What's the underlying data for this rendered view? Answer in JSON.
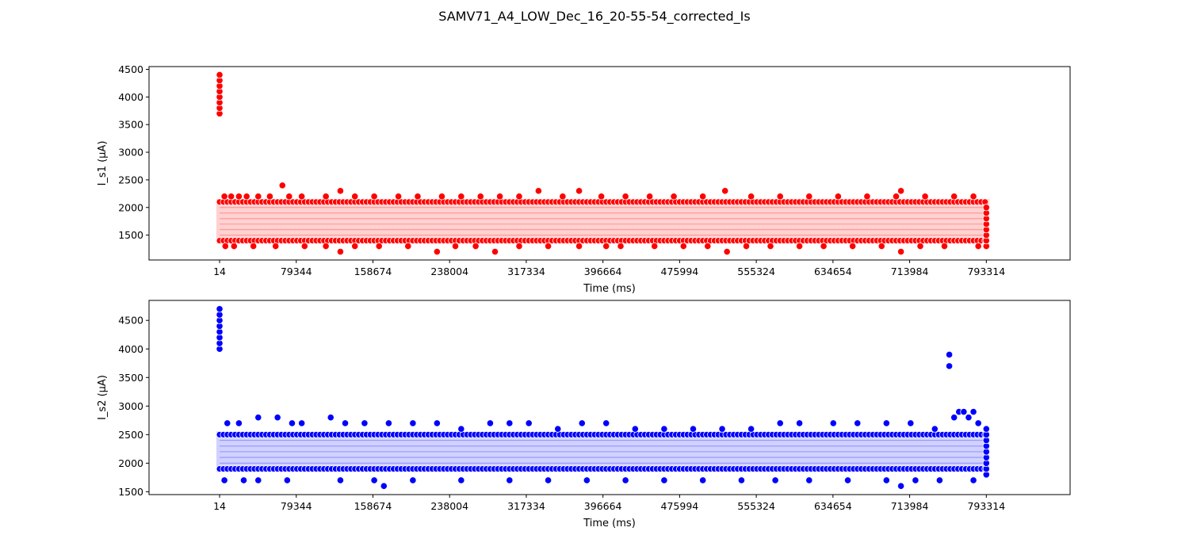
{
  "figure": {
    "title": "SAMV71_A4_LOW_Dec_16_20-55-54_corrected_Is"
  },
  "chart_data": [
    {
      "type": "scatter",
      "title": "",
      "xlabel": "Time (ms)",
      "ylabel": "I_s1 (µA)",
      "xlim": [
        -73000,
        880000
      ],
      "ylim": [
        1050,
        4550
      ],
      "x_ticks": [
        14,
        79344,
        158674,
        238004,
        317334,
        396664,
        475994,
        555324,
        634654,
        713984,
        793314
      ],
      "y_ticks": [
        1500,
        2000,
        2500,
        3000,
        3500,
        4000,
        4500
      ],
      "grid": false,
      "color": "#ff0000",
      "band": {
        "x": [
          14,
          793314
        ],
        "y_low": 1400,
        "y_high": 2100
      },
      "band_levels": [
        1400,
        1500,
        1600,
        1700,
        1800,
        1900,
        2000,
        2100
      ],
      "points": [
        [
          14,
          3700
        ],
        [
          14,
          3800
        ],
        [
          14,
          3900
        ],
        [
          14,
          4000
        ],
        [
          14,
          4100
        ],
        [
          14,
          4200
        ],
        [
          14,
          4300
        ],
        [
          14,
          4400
        ],
        [
          5000,
          2200
        ],
        [
          12000,
          2200
        ],
        [
          20000,
          2200
        ],
        [
          28000,
          2200
        ],
        [
          40000,
          2200
        ],
        [
          52000,
          2200
        ],
        [
          65000,
          2400
        ],
        [
          72000,
          2200
        ],
        [
          85000,
          2200
        ],
        [
          110000,
          2200
        ],
        [
          125000,
          2300
        ],
        [
          140000,
          2200
        ],
        [
          160000,
          2200
        ],
        [
          185000,
          2200
        ],
        [
          205000,
          2200
        ],
        [
          230000,
          2200
        ],
        [
          250000,
          2200
        ],
        [
          270000,
          2200
        ],
        [
          290000,
          2200
        ],
        [
          310000,
          2200
        ],
        [
          330000,
          2300
        ],
        [
          355000,
          2200
        ],
        [
          372000,
          2300
        ],
        [
          395000,
          2200
        ],
        [
          420000,
          2200
        ],
        [
          445000,
          2200
        ],
        [
          470000,
          2200
        ],
        [
          500000,
          2200
        ],
        [
          523000,
          2300
        ],
        [
          550000,
          2200
        ],
        [
          580000,
          2200
        ],
        [
          610000,
          2200
        ],
        [
          640000,
          2200
        ],
        [
          670000,
          2200
        ],
        [
          700000,
          2200
        ],
        [
          705000,
          2300
        ],
        [
          730000,
          2200
        ],
        [
          760000,
          2200
        ],
        [
          780000,
          2200
        ],
        [
          6000,
          1300
        ],
        [
          15000,
          1300
        ],
        [
          35000,
          1300
        ],
        [
          58000,
          1300
        ],
        [
          88000,
          1300
        ],
        [
          110000,
          1300
        ],
        [
          125000,
          1200
        ],
        [
          140000,
          1300
        ],
        [
          165000,
          1300
        ],
        [
          195000,
          1300
        ],
        [
          225000,
          1200
        ],
        [
          244000,
          1300
        ],
        [
          265000,
          1300
        ],
        [
          285000,
          1200
        ],
        [
          310000,
          1300
        ],
        [
          340000,
          1300
        ],
        [
          372000,
          1300
        ],
        [
          400000,
          1300
        ],
        [
          415000,
          1300
        ],
        [
          450000,
          1300
        ],
        [
          480000,
          1300
        ],
        [
          505000,
          1300
        ],
        [
          525000,
          1200
        ],
        [
          545000,
          1300
        ],
        [
          570000,
          1300
        ],
        [
          600000,
          1300
        ],
        [
          625000,
          1300
        ],
        [
          655000,
          1300
        ],
        [
          685000,
          1300
        ],
        [
          705000,
          1200
        ],
        [
          725000,
          1300
        ],
        [
          750000,
          1300
        ],
        [
          785000,
          1300
        ],
        [
          793314,
          1300
        ],
        [
          793314,
          1400
        ],
        [
          793314,
          1500
        ],
        [
          793314,
          1600
        ],
        [
          793314,
          1700
        ],
        [
          793314,
          1800
        ],
        [
          793314,
          1900
        ],
        [
          793314,
          2000
        ]
      ]
    },
    {
      "type": "scatter",
      "title": "",
      "xlabel": "Time (ms)",
      "ylabel": "I_s2 (µA)",
      "xlim": [
        -73000,
        880000
      ],
      "ylim": [
        1450,
        4850
      ],
      "x_ticks": [
        14,
        79344,
        158674,
        238004,
        317334,
        396664,
        475994,
        555324,
        634654,
        713984,
        793314
      ],
      "y_ticks": [
        1500,
        2000,
        2500,
        3000,
        3500,
        4000,
        4500
      ],
      "grid": false,
      "color": "#0000ff",
      "band": {
        "x": [
          14,
          793314
        ],
        "y_low": 1900,
        "y_high": 2500
      },
      "band_levels": [
        1900,
        2000,
        2100,
        2200,
        2300,
        2400,
        2500
      ],
      "points": [
        [
          14,
          4000
        ],
        [
          14,
          4100
        ],
        [
          14,
          4200
        ],
        [
          14,
          4300
        ],
        [
          14,
          4400
        ],
        [
          14,
          4500
        ],
        [
          14,
          4600
        ],
        [
          14,
          4700
        ],
        [
          8000,
          2700
        ],
        [
          20000,
          2700
        ],
        [
          40000,
          2800
        ],
        [
          60000,
          2800
        ],
        [
          75000,
          2700
        ],
        [
          85000,
          2700
        ],
        [
          115000,
          2800
        ],
        [
          130000,
          2700
        ],
        [
          150000,
          2700
        ],
        [
          175000,
          2700
        ],
        [
          200000,
          2700
        ],
        [
          225000,
          2700
        ],
        [
          250000,
          2600
        ],
        [
          280000,
          2700
        ],
        [
          300000,
          2700
        ],
        [
          320000,
          2700
        ],
        [
          350000,
          2600
        ],
        [
          375000,
          2700
        ],
        [
          400000,
          2700
        ],
        [
          430000,
          2600
        ],
        [
          460000,
          2600
        ],
        [
          490000,
          2600
        ],
        [
          520000,
          2600
        ],
        [
          550000,
          2600
        ],
        [
          580000,
          2700
        ],
        [
          600000,
          2700
        ],
        [
          635000,
          2700
        ],
        [
          660000,
          2700
        ],
        [
          690000,
          2700
        ],
        [
          715000,
          2700
        ],
        [
          740000,
          2600
        ],
        [
          5000,
          1700
        ],
        [
          25000,
          1700
        ],
        [
          40000,
          1700
        ],
        [
          70000,
          1700
        ],
        [
          125000,
          1700
        ],
        [
          160000,
          1700
        ],
        [
          170000,
          1600
        ],
        [
          200000,
          1700
        ],
        [
          250000,
          1700
        ],
        [
          300000,
          1700
        ],
        [
          340000,
          1700
        ],
        [
          380000,
          1700
        ],
        [
          420000,
          1700
        ],
        [
          460000,
          1700
        ],
        [
          500000,
          1700
        ],
        [
          540000,
          1700
        ],
        [
          575000,
          1700
        ],
        [
          610000,
          1700
        ],
        [
          650000,
          1700
        ],
        [
          690000,
          1700
        ],
        [
          705000,
          1600
        ],
        [
          720000,
          1700
        ],
        [
          745000,
          1700
        ],
        [
          780000,
          1700
        ],
        [
          755000,
          3900
        ],
        [
          755000,
          3700
        ],
        [
          760000,
          2800
        ],
        [
          765000,
          2900
        ],
        [
          770000,
          2900
        ],
        [
          775000,
          2800
        ],
        [
          780000,
          2900
        ],
        [
          785000,
          2700
        ],
        [
          793314,
          1800
        ],
        [
          793314,
          1900
        ],
        [
          793314,
          2000
        ],
        [
          793314,
          2100
        ],
        [
          793314,
          2200
        ],
        [
          793314,
          2300
        ],
        [
          793314,
          2400
        ],
        [
          793314,
          2500
        ],
        [
          793314,
          2600
        ]
      ]
    }
  ]
}
